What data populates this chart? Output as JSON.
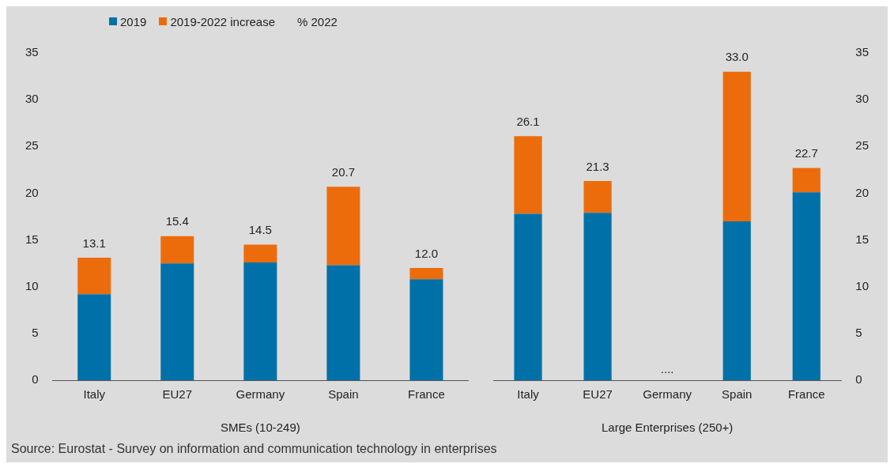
{
  "chart_data": [
    {
      "type": "bar",
      "stacked": true,
      "xlabel": "SMEs (10-249)",
      "categories": [
        "Italy",
        "EU27",
        "Germany",
        "Spain",
        "France"
      ],
      "ylim": [
        0,
        35
      ],
      "yticks": [
        0,
        5,
        10,
        15,
        20,
        25,
        30,
        35
      ],
      "legend": "top left",
      "legend_title": "% 2022",
      "grid": false,
      "series": [
        {
          "name": "2019",
          "color": "#0071a8",
          "values": [
            9.2,
            12.5,
            12.6,
            12.3,
            10.8
          ]
        },
        {
          "name": "2019-2022 increase",
          "color": "#ec6c0c",
          "values": [
            3.9,
            2.9,
            1.9,
            8.4,
            1.2
          ]
        }
      ],
      "totals": [
        "13.1",
        "15.4",
        "14.5",
        "20.7",
        "12.0"
      ],
      "annotations": [
        "Source: Eurostat - Survey on information and communication technology in enterprises"
      ]
    },
    {
      "type": "bar",
      "stacked": true,
      "xlabel": "Large Enterprises (250+)",
      "categories": [
        "Italy",
        "EU27",
        "Germany",
        "Spain",
        "France"
      ],
      "y2lim": [
        0,
        35
      ],
      "y2ticks": [
        0,
        5,
        10,
        15,
        20,
        25,
        30,
        35
      ],
      "grid": false,
      "series": [
        {
          "color": "#0071a8",
          "axis": "y2",
          "values": [
            17.8,
            17.9,
            null,
            17.0,
            20.1
          ]
        },
        {
          "color": "#ec6c0c",
          "axis": "y2",
          "values": [
            8.3,
            3.4,
            null,
            16.0,
            2.6
          ]
        }
      ],
      "totals": [
        "26.1",
        "21.3",
        "....",
        "33.0",
        "22.7"
      ]
    }
  ]
}
